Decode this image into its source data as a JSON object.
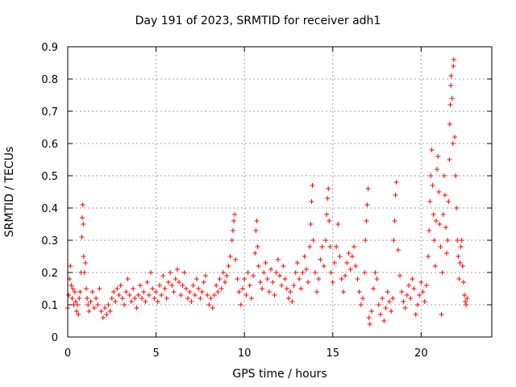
{
  "chart_data": {
    "type": "scatter",
    "title": "Day 191 of 2023, SRMTID for receiver adh1",
    "xlabel": "GPS time / hours",
    "ylabel": "SRMTID / TECUs",
    "xlim": [
      0,
      24
    ],
    "ylim": [
      0,
      0.9
    ],
    "xticks": [
      0,
      5,
      10,
      15,
      20
    ],
    "xtick_labels": [
      "0",
      "5",
      "10",
      "15",
      "20"
    ],
    "yticks": [
      0,
      0.1,
      0.2,
      0.3,
      0.4,
      0.5,
      0.6,
      0.7,
      0.8,
      0.9
    ],
    "ytick_labels": [
      "0",
      "0.1",
      "0.2",
      "0.3",
      "0.4",
      "0.5",
      "0.6",
      "0.7",
      "0.8",
      "0.9"
    ],
    "grid": true,
    "marker": "+",
    "series": [
      {
        "name": "SRMTID",
        "color": "#ff0000",
        "points": [
          [
            0.0,
            0.09
          ],
          [
            0.05,
            0.13
          ],
          [
            0.1,
            0.18
          ],
          [
            0.15,
            0.22
          ],
          [
            0.2,
            0.16
          ],
          [
            0.25,
            0.12
          ],
          [
            0.3,
            0.15
          ],
          [
            0.35,
            0.1
          ],
          [
            0.4,
            0.14
          ],
          [
            0.45,
            0.11
          ],
          [
            0.5,
            0.08
          ],
          [
            0.55,
            0.1
          ],
          [
            0.6,
            0.07
          ],
          [
            0.65,
            0.12
          ],
          [
            0.7,
            0.14
          ],
          [
            0.75,
            0.2
          ],
          [
            0.8,
            0.31
          ],
          [
            0.82,
            0.37
          ],
          [
            0.85,
            0.41
          ],
          [
            0.88,
            0.35
          ],
          [
            0.9,
            0.25
          ],
          [
            0.95,
            0.2
          ],
          [
            1.0,
            0.23
          ],
          [
            1.05,
            0.15
          ],
          [
            1.1,
            0.12
          ],
          [
            1.15,
            0.1
          ],
          [
            1.2,
            0.08
          ],
          [
            1.3,
            0.11
          ],
          [
            1.4,
            0.14
          ],
          [
            1.5,
            0.09
          ],
          [
            1.6,
            0.12
          ],
          [
            1.7,
            0.1
          ],
          [
            1.8,
            0.15
          ],
          [
            1.9,
            0.08
          ],
          [
            2.0,
            0.06
          ],
          [
            2.1,
            0.09
          ],
          [
            2.2,
            0.07
          ],
          [
            2.3,
            0.1
          ],
          [
            2.4,
            0.08
          ],
          [
            2.5,
            0.12
          ],
          [
            2.6,
            0.14
          ],
          [
            2.7,
            0.11
          ],
          [
            2.8,
            0.15
          ],
          [
            2.9,
            0.13
          ],
          [
            3.0,
            0.16
          ],
          [
            3.1,
            0.12
          ],
          [
            3.2,
            0.1
          ],
          [
            3.3,
            0.14
          ],
          [
            3.4,
            0.18
          ],
          [
            3.5,
            0.13
          ],
          [
            3.6,
            0.11
          ],
          [
            3.7,
            0.15
          ],
          [
            3.8,
            0.12
          ],
          [
            3.9,
            0.09
          ],
          [
            4.0,
            0.13
          ],
          [
            4.1,
            0.16
          ],
          [
            4.2,
            0.12
          ],
          [
            4.3,
            0.14
          ],
          [
            4.4,
            0.11
          ],
          [
            4.5,
            0.17
          ],
          [
            4.6,
            0.13
          ],
          [
            4.7,
            0.2
          ],
          [
            4.8,
            0.15
          ],
          [
            4.9,
            0.12
          ],
          [
            5.0,
            0.14
          ],
          [
            5.1,
            0.11
          ],
          [
            5.2,
            0.16
          ],
          [
            5.3,
            0.13
          ],
          [
            5.4,
            0.19
          ],
          [
            5.5,
            0.15
          ],
          [
            5.6,
            0.12
          ],
          [
            5.7,
            0.17
          ],
          [
            5.8,
            0.2
          ],
          [
            5.9,
            0.16
          ],
          [
            6.0,
            0.14
          ],
          [
            6.1,
            0.18
          ],
          [
            6.2,
            0.21
          ],
          [
            6.3,
            0.17
          ],
          [
            6.4,
            0.13
          ],
          [
            6.5,
            0.16
          ],
          [
            6.6,
            0.2
          ],
          [
            6.7,
            0.15
          ],
          [
            6.8,
            0.12
          ],
          [
            6.9,
            0.14
          ],
          [
            7.0,
            0.11
          ],
          [
            7.1,
            0.16
          ],
          [
            7.2,
            0.13
          ],
          [
            7.3,
            0.18
          ],
          [
            7.4,
            0.15
          ],
          [
            7.5,
            0.12
          ],
          [
            7.6,
            0.14
          ],
          [
            7.7,
            0.17
          ],
          [
            7.8,
            0.19
          ],
          [
            7.9,
            0.13
          ],
          [
            8.0,
            0.1
          ],
          [
            8.1,
            0.12
          ],
          [
            8.2,
            0.09
          ],
          [
            8.3,
            0.13
          ],
          [
            8.4,
            0.16
          ],
          [
            8.5,
            0.14
          ],
          [
            8.6,
            0.18
          ],
          [
            8.7,
            0.15
          ],
          [
            8.8,
            0.2
          ],
          [
            8.9,
            0.17
          ],
          [
            9.0,
            0.19
          ],
          [
            9.1,
            0.22
          ],
          [
            9.2,
            0.25
          ],
          [
            9.3,
            0.3
          ],
          [
            9.35,
            0.33
          ],
          [
            9.4,
            0.36
          ],
          [
            9.45,
            0.38
          ],
          [
            9.5,
            0.24
          ],
          [
            9.6,
            0.18
          ],
          [
            9.7,
            0.14
          ],
          [
            9.8,
            0.1
          ],
          [
            9.9,
            0.15
          ],
          [
            10.0,
            0.18
          ],
          [
            10.1,
            0.13
          ],
          [
            10.2,
            0.2
          ],
          [
            10.3,
            0.16
          ],
          [
            10.4,
            0.12
          ],
          [
            10.5,
            0.19
          ],
          [
            10.6,
            0.26
          ],
          [
            10.65,
            0.33
          ],
          [
            10.7,
            0.36
          ],
          [
            10.75,
            0.28
          ],
          [
            10.8,
            0.22
          ],
          [
            10.9,
            0.17
          ],
          [
            11.0,
            0.15
          ],
          [
            11.1,
            0.2
          ],
          [
            11.2,
            0.23
          ],
          [
            11.3,
            0.18
          ],
          [
            11.4,
            0.14
          ],
          [
            11.5,
            0.21
          ],
          [
            11.6,
            0.17
          ],
          [
            11.7,
            0.13
          ],
          [
            11.8,
            0.2
          ],
          [
            11.9,
            0.24
          ],
          [
            12.0,
            0.19
          ],
          [
            12.1,
            0.16
          ],
          [
            12.2,
            0.22
          ],
          [
            12.3,
            0.18
          ],
          [
            12.4,
            0.15
          ],
          [
            12.5,
            0.12
          ],
          [
            12.6,
            0.14
          ],
          [
            12.7,
            0.11
          ],
          [
            12.8,
            0.16
          ],
          [
            12.9,
            0.2
          ],
          [
            13.0,
            0.23
          ],
          [
            13.1,
            0.18
          ],
          [
            13.2,
            0.15
          ],
          [
            13.3,
            0.2
          ],
          [
            13.4,
            0.25
          ],
          [
            13.5,
            0.21
          ],
          [
            13.6,
            0.17
          ],
          [
            13.7,
            0.28
          ],
          [
            13.75,
            0.35
          ],
          [
            13.8,
            0.42
          ],
          [
            13.85,
            0.47
          ],
          [
            13.9,
            0.3
          ],
          [
            14.0,
            0.2
          ],
          [
            14.1,
            0.14
          ],
          [
            14.2,
            0.18
          ],
          [
            14.3,
            0.24
          ],
          [
            14.4,
            0.28
          ],
          [
            14.5,
            0.22
          ],
          [
            14.6,
            0.3
          ],
          [
            14.65,
            0.38
          ],
          [
            14.7,
            0.43
          ],
          [
            14.75,
            0.46
          ],
          [
            14.8,
            0.36
          ],
          [
            14.85,
            0.28
          ],
          [
            14.9,
            0.2
          ],
          [
            15.0,
            0.17
          ],
          [
            15.1,
            0.23
          ],
          [
            15.2,
            0.28
          ],
          [
            15.3,
            0.35
          ],
          [
            15.4,
            0.25
          ],
          [
            15.5,
            0.18
          ],
          [
            15.6,
            0.14
          ],
          [
            15.7,
            0.19
          ],
          [
            15.8,
            0.23
          ],
          [
            15.9,
            0.26
          ],
          [
            16.0,
            0.21
          ],
          [
            16.1,
            0.25
          ],
          [
            16.2,
            0.28
          ],
          [
            16.3,
            0.22
          ],
          [
            16.4,
            0.18
          ],
          [
            16.5,
            0.14
          ],
          [
            16.6,
            0.1
          ],
          [
            16.7,
            0.12
          ],
          [
            16.8,
            0.2
          ],
          [
            16.85,
            0.3
          ],
          [
            16.9,
            0.36
          ],
          [
            16.95,
            0.41
          ],
          [
            17.0,
            0.46
          ],
          [
            17.05,
            0.06
          ],
          [
            17.1,
            0.04
          ],
          [
            17.2,
            0.08
          ],
          [
            17.3,
            0.15
          ],
          [
            17.4,
            0.2
          ],
          [
            17.5,
            0.18
          ],
          [
            17.6,
            0.1
          ],
          [
            17.7,
            0.07
          ],
          [
            17.8,
            0.12
          ],
          [
            17.9,
            0.05
          ],
          [
            18.0,
            0.09
          ],
          [
            18.1,
            0.14
          ],
          [
            18.2,
            0.11
          ],
          [
            18.3,
            0.08
          ],
          [
            18.4,
            0.12
          ],
          [
            18.45,
            0.3
          ],
          [
            18.5,
            0.36
          ],
          [
            18.55,
            0.44
          ],
          [
            18.6,
            0.48
          ],
          [
            18.7,
            0.27
          ],
          [
            18.8,
            0.19
          ],
          [
            18.9,
            0.14
          ],
          [
            19.0,
            0.11
          ],
          [
            19.1,
            0.09
          ],
          [
            19.2,
            0.13
          ],
          [
            19.3,
            0.16
          ],
          [
            19.4,
            0.12
          ],
          [
            19.5,
            0.18
          ],
          [
            19.6,
            0.15
          ],
          [
            19.7,
            0.07
          ],
          [
            19.8,
            0.1
          ],
          [
            19.9,
            0.13
          ],
          [
            20.0,
            0.17
          ],
          [
            20.1,
            0.14
          ],
          [
            20.2,
            0.11
          ],
          [
            20.3,
            0.16
          ],
          [
            20.4,
            0.25
          ],
          [
            20.45,
            0.33
          ],
          [
            20.5,
            0.42
          ],
          [
            20.55,
            0.5
          ],
          [
            20.6,
            0.58
          ],
          [
            20.65,
            0.47
          ],
          [
            20.7,
            0.38
          ],
          [
            20.75,
            0.3
          ],
          [
            20.8,
            0.22
          ],
          [
            20.85,
            0.36
          ],
          [
            20.9,
            0.52
          ],
          [
            20.95,
            0.56
          ],
          [
            21.0,
            0.45
          ],
          [
            21.05,
            0.35
          ],
          [
            21.1,
            0.28
          ],
          [
            21.15,
            0.07
          ],
          [
            21.2,
            0.2
          ],
          [
            21.25,
            0.38
          ],
          [
            21.3,
            0.5
          ],
          [
            21.35,
            0.44
          ],
          [
            21.4,
            0.34
          ],
          [
            21.45,
            0.26
          ],
          [
            21.5,
            0.3
          ],
          [
            21.55,
            0.42
          ],
          [
            21.6,
            0.55
          ],
          [
            21.62,
            0.66
          ],
          [
            21.65,
            0.72
          ],
          [
            21.68,
            0.78
          ],
          [
            21.7,
            0.81
          ],
          [
            21.75,
            0.74
          ],
          [
            21.8,
            0.6
          ],
          [
            21.82,
            0.84
          ],
          [
            21.85,
            0.86
          ],
          [
            21.9,
            0.62
          ],
          [
            21.95,
            0.5
          ],
          [
            22.0,
            0.4
          ],
          [
            22.05,
            0.3
          ],
          [
            22.1,
            0.25
          ],
          [
            22.15,
            0.18
          ],
          [
            22.2,
            0.23
          ],
          [
            22.25,
            0.28
          ],
          [
            22.3,
            0.3
          ],
          [
            22.35,
            0.22
          ],
          [
            22.4,
            0.17
          ],
          [
            22.45,
            0.13
          ],
          [
            22.5,
            0.11
          ],
          [
            22.55,
            0.1
          ],
          [
            22.6,
            0.12
          ]
        ]
      }
    ]
  }
}
